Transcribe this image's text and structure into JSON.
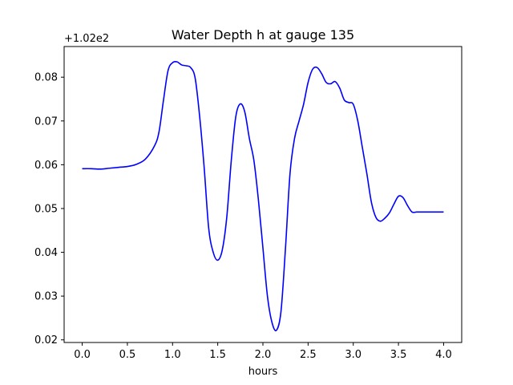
{
  "chart_data": {
    "type": "line",
    "title": "Water Depth h at gauge 135",
    "xlabel": "hours",
    "ylabel": "",
    "offset_label": "+1.02e2",
    "xlim": [
      -0.2,
      4.2
    ],
    "ylim": [
      0.0194,
      0.087
    ],
    "x_ticks": [
      0.0,
      0.5,
      1.0,
      1.5,
      2.0,
      2.5,
      3.0,
      3.5,
      4.0
    ],
    "x_tick_labels": [
      "0.0",
      "0.5",
      "1.0",
      "1.5",
      "2.0",
      "2.5",
      "3.0",
      "3.5",
      "4.0"
    ],
    "y_ticks": [
      0.02,
      0.03,
      0.04,
      0.05,
      0.06,
      0.07,
      0.08
    ],
    "y_tick_labels": [
      "0.02",
      "0.03",
      "0.04",
      "0.05",
      "0.06",
      "0.07",
      "0.08"
    ],
    "grid": false,
    "line_color": "#0000ff",
    "series": [
      {
        "x": [
          0.0,
          0.1,
          0.2,
          0.3,
          0.4,
          0.5,
          0.6,
          0.7,
          0.8,
          0.85,
          0.9,
          0.95,
          1.0,
          1.05,
          1.1,
          1.15,
          1.2,
          1.25,
          1.3,
          1.35,
          1.4,
          1.45,
          1.5,
          1.55,
          1.6,
          1.65,
          1.7,
          1.75,
          1.8,
          1.85,
          1.9,
          1.95,
          2.0,
          2.05,
          2.1,
          2.15,
          2.2,
          2.25,
          2.3,
          2.35,
          2.4,
          2.45,
          2.5,
          2.55,
          2.6,
          2.65,
          2.7,
          2.75,
          2.8,
          2.85,
          2.9,
          2.95,
          3.0,
          3.05,
          3.1,
          3.15,
          3.2,
          3.25,
          3.3,
          3.35,
          3.4,
          3.45,
          3.5,
          3.55,
          3.6,
          3.65,
          3.7,
          3.75,
          3.8,
          3.85,
          3.9,
          3.95,
          4.0
        ],
        "y": [
          0.0591,
          0.0591,
          0.059,
          0.0592,
          0.0594,
          0.0596,
          0.0601,
          0.0613,
          0.0643,
          0.0675,
          0.0748,
          0.0815,
          0.0833,
          0.0835,
          0.0828,
          0.0826,
          0.0822,
          0.0798,
          0.071,
          0.0593,
          0.0455,
          0.04,
          0.0382,
          0.0405,
          0.048,
          0.061,
          0.071,
          0.0739,
          0.072,
          0.066,
          0.061,
          0.052,
          0.041,
          0.03,
          0.024,
          0.0222,
          0.0265,
          0.041,
          0.058,
          0.066,
          0.07,
          0.0738,
          0.0788,
          0.0818,
          0.0822,
          0.0808,
          0.0788,
          0.0785,
          0.079,
          0.0775,
          0.0748,
          0.0742,
          0.0738,
          0.07,
          0.064,
          0.058,
          0.0515,
          0.048,
          0.0471,
          0.0478,
          0.049,
          0.051,
          0.0528,
          0.0525,
          0.0507,
          0.0492,
          0.0492,
          0.0492,
          0.0492,
          0.0492,
          0.0492,
          0.0492,
          0.0492
        ]
      }
    ]
  }
}
